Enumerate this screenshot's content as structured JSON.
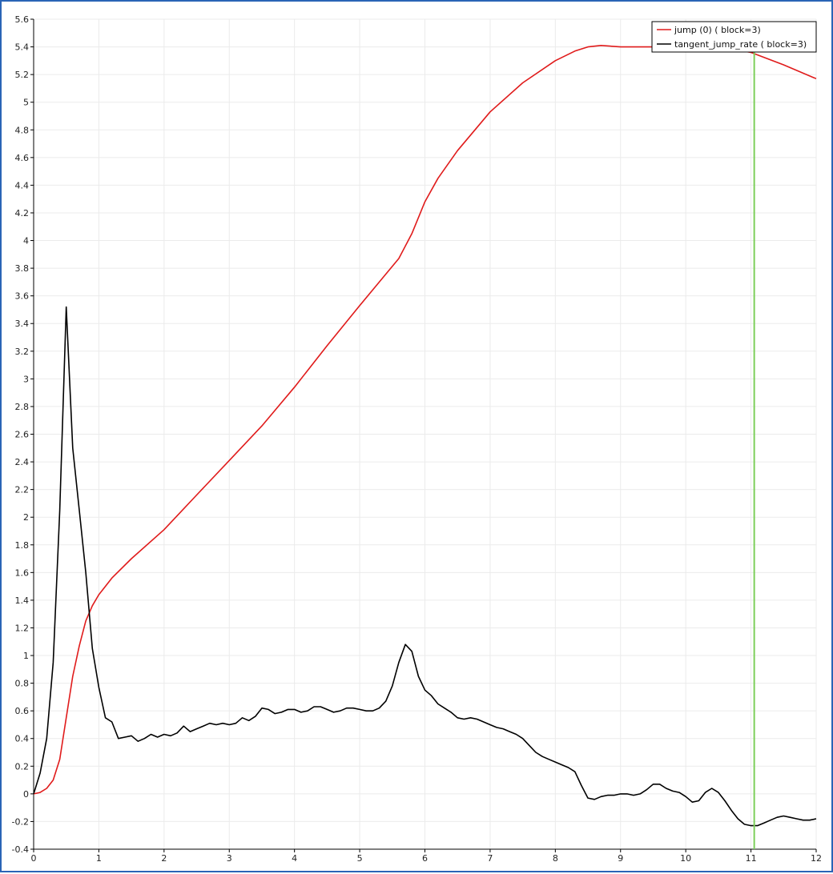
{
  "chart_data": {
    "type": "line",
    "title": "",
    "xlabel": "",
    "ylabel": "",
    "xlim": [
      0,
      12
    ],
    "ylim": [
      -0.4,
      5.6
    ],
    "grid": true,
    "legend_position": "top-right",
    "x_ticks": [
      "0",
      "1",
      "2",
      "3",
      "4",
      "5",
      "6",
      "7",
      "8",
      "9",
      "10",
      "11",
      "12"
    ],
    "y_ticks": [
      "-0.4",
      "-0.2",
      "0",
      "0.2",
      "0.4",
      "0.6",
      "0.8",
      "1",
      "1.2",
      "1.4",
      "1.6",
      "1.8",
      "2",
      "2.2",
      "2.4",
      "2.6",
      "2.8",
      "3",
      "3.2",
      "3.4",
      "3.6",
      "3.8",
      "4",
      "4.2",
      "4.4",
      "4.6",
      "4.8",
      "5",
      "5.2",
      "5.4",
      "5.6"
    ],
    "marker_line": {
      "x": 11.05,
      "color": "#7ccf5a"
    },
    "series": [
      {
        "name": "jump (0) ( block=3)",
        "color": "#e01b1b",
        "x": [
          0,
          0.1,
          0.2,
          0.3,
          0.4,
          0.5,
          0.6,
          0.7,
          0.8,
          0.9,
          1.0,
          1.2,
          1.5,
          2.0,
          2.5,
          3.0,
          3.5,
          4.0,
          4.5,
          5.0,
          5.3,
          5.6,
          5.8,
          6.0,
          6.2,
          6.5,
          7.0,
          7.5,
          8.0,
          8.3,
          8.5,
          8.7,
          9.0,
          9.5,
          10.0,
          10.5,
          11.0,
          11.5,
          12.0
        ],
        "y": [
          0,
          0.01,
          0.04,
          0.1,
          0.25,
          0.55,
          0.85,
          1.07,
          1.25,
          1.36,
          1.44,
          1.56,
          1.7,
          1.91,
          2.16,
          2.41,
          2.66,
          2.94,
          3.24,
          3.53,
          3.7,
          3.87,
          4.05,
          4.28,
          4.45,
          4.65,
          4.93,
          5.14,
          5.3,
          5.37,
          5.4,
          5.41,
          5.4,
          5.4,
          5.4,
          5.4,
          5.36,
          5.27,
          5.17
        ]
      },
      {
        "name": "tangent_jump_rate ( block=3)",
        "color": "#000000",
        "x": [
          0,
          0.1,
          0.2,
          0.3,
          0.4,
          0.5,
          0.6,
          0.7,
          0.8,
          0.9,
          1.0,
          1.1,
          1.2,
          1.3,
          1.4,
          1.5,
          1.6,
          1.7,
          1.8,
          1.9,
          2.0,
          2.1,
          2.2,
          2.3,
          2.4,
          2.5,
          2.6,
          2.7,
          2.8,
          2.9,
          3.0,
          3.1,
          3.2,
          3.3,
          3.4,
          3.5,
          3.6,
          3.7,
          3.8,
          3.9,
          4.0,
          4.1,
          4.2,
          4.3,
          4.4,
          4.5,
          4.6,
          4.7,
          4.8,
          4.9,
          5.0,
          5.1,
          5.2,
          5.3,
          5.4,
          5.5,
          5.6,
          5.7,
          5.8,
          5.9,
          6.0,
          6.1,
          6.2,
          6.3,
          6.4,
          6.5,
          6.6,
          6.7,
          6.8,
          6.9,
          7.0,
          7.1,
          7.2,
          7.3,
          7.4,
          7.5,
          7.6,
          7.7,
          7.8,
          7.9,
          8.0,
          8.1,
          8.2,
          8.3,
          8.4,
          8.5,
          8.6,
          8.7,
          8.8,
          8.9,
          9.0,
          9.1,
          9.2,
          9.3,
          9.4,
          9.5,
          9.6,
          9.7,
          9.8,
          9.9,
          10.0,
          10.1,
          10.2,
          10.3,
          10.4,
          10.5,
          10.6,
          10.7,
          10.8,
          10.9,
          11.0,
          11.1,
          11.2,
          11.3,
          11.4,
          11.5,
          11.6,
          11.7,
          11.8,
          11.9,
          12.0
        ],
        "y": [
          0,
          0.15,
          0.4,
          0.95,
          2.05,
          3.52,
          2.5,
          2.05,
          1.6,
          1.05,
          0.77,
          0.55,
          0.52,
          0.4,
          0.41,
          0.42,
          0.38,
          0.4,
          0.43,
          0.41,
          0.43,
          0.42,
          0.44,
          0.49,
          0.45,
          0.47,
          0.49,
          0.51,
          0.5,
          0.51,
          0.5,
          0.51,
          0.55,
          0.53,
          0.56,
          0.62,
          0.61,
          0.58,
          0.59,
          0.61,
          0.61,
          0.59,
          0.6,
          0.63,
          0.63,
          0.61,
          0.59,
          0.6,
          0.62,
          0.62,
          0.61,
          0.6,
          0.6,
          0.62,
          0.67,
          0.78,
          0.95,
          1.08,
          1.03,
          0.85,
          0.75,
          0.71,
          0.65,
          0.62,
          0.59,
          0.55,
          0.54,
          0.55,
          0.54,
          0.52,
          0.5,
          0.48,
          0.47,
          0.45,
          0.43,
          0.4,
          0.35,
          0.3,
          0.27,
          0.25,
          0.23,
          0.21,
          0.19,
          0.16,
          0.06,
          -0.03,
          -0.04,
          -0.02,
          -0.01,
          -0.01,
          0,
          0,
          -0.01,
          0,
          0.03,
          0.07,
          0.07,
          0.04,
          0.02,
          0.01,
          -0.02,
          -0.06,
          -0.05,
          0.01,
          0.04,
          0.01,
          -0.05,
          -0.12,
          -0.18,
          -0.22,
          -0.23,
          -0.23,
          -0.21,
          -0.19,
          -0.17,
          -0.16,
          -0.17,
          -0.18,
          -0.19,
          -0.19,
          -0.18
        ]
      }
    ]
  }
}
